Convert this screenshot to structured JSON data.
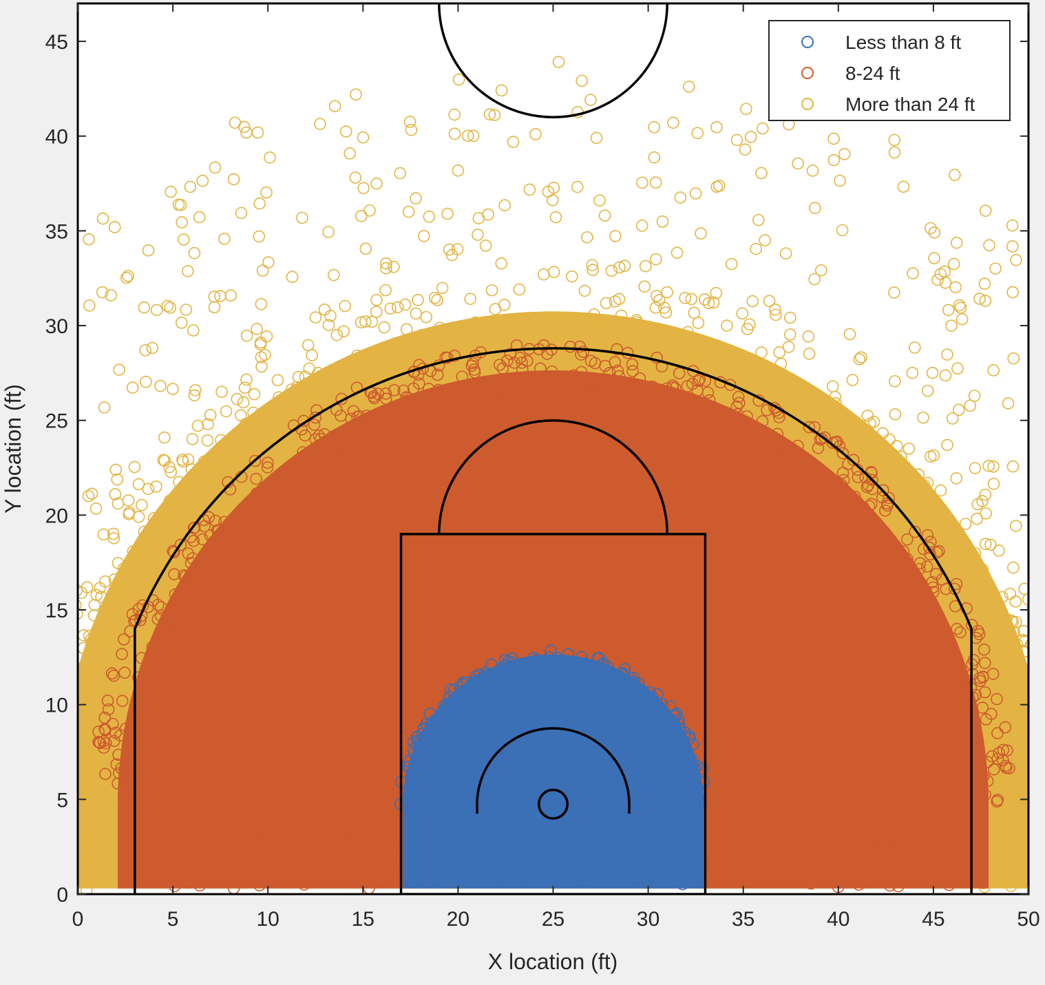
{
  "chart_data": {
    "type": "scatter",
    "xlabel": "X location (ft)",
    "ylabel": "Y location (ft)",
    "xlim": [
      0,
      50
    ],
    "ylim": [
      0,
      47
    ],
    "xticks": [
      0,
      5,
      10,
      15,
      20,
      25,
      30,
      35,
      40,
      45,
      50
    ],
    "yticks": [
      0,
      5,
      10,
      15,
      20,
      25,
      30,
      35,
      40,
      45
    ],
    "grid": false,
    "legend_position": "top-right",
    "series": [
      {
        "name": "Less than 8 ft",
        "color": "#3b6fb6",
        "marker": "open-circle",
        "distance_ft": [
          0,
          8
        ]
      },
      {
        "name": "8-24 ft",
        "color": "#cd5b2d",
        "marker": "open-circle",
        "distance_ft": [
          8,
          24
        ]
      },
      {
        "name": "More than 24 ft",
        "color": "#e3b443",
        "marker": "open-circle",
        "distance_ft": [
          24,
          null
        ]
      }
    ],
    "court": {
      "basket": {
        "x": 25,
        "y": 4.75,
        "radius": 0.75
      },
      "restricted_area_radius": 4,
      "paint": {
        "x": [
          17,
          33
        ],
        "y": [
          0,
          19
        ]
      },
      "free_throw_circle_radius": 6,
      "three_point": {
        "radius": 23.75,
        "corner_x": [
          3,
          47
        ],
        "corner_y": 14
      },
      "center_circle": {
        "x": 25,
        "y": 47,
        "radius": 6
      }
    }
  }
}
